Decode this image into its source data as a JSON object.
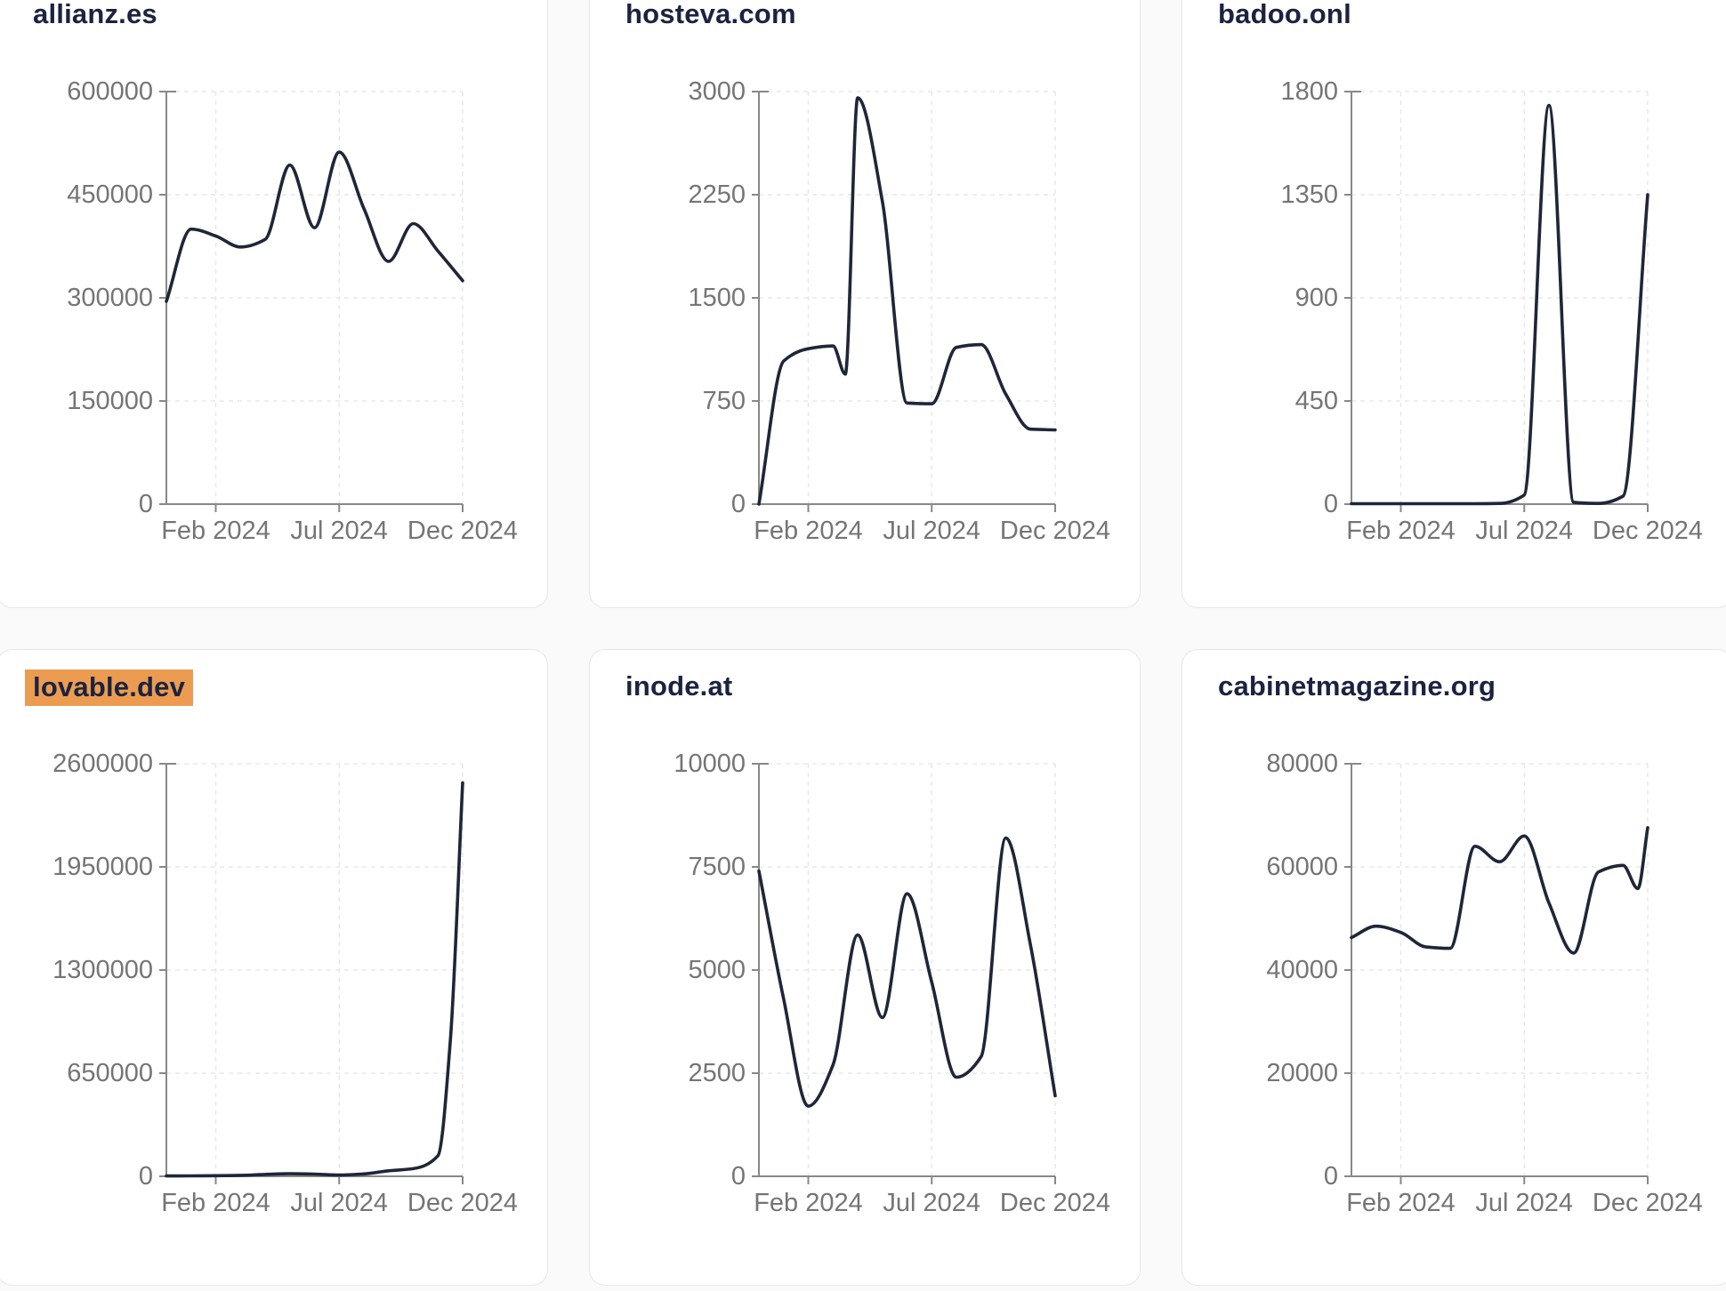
{
  "page": {
    "background": "#fafafb",
    "card_background": "#ffffff",
    "card_border": "#e5e7ee"
  },
  "style": {
    "line_color": "#1f2638",
    "title_color": "#1b2340",
    "tick_text_color": "#757575",
    "axis_color": "#888888",
    "grid_color": "#e7e8ec",
    "highlight_color": "#ec9c51"
  },
  "x_axis": {
    "domain_months": [
      0,
      12
    ],
    "tick_positions": [
      2,
      7,
      12
    ],
    "tick_labels": [
      "Feb 2024",
      "Jul 2024",
      "Dec 2024"
    ]
  },
  "chart_data": [
    {
      "type": "line",
      "title": "allianz.es",
      "highlighted": false,
      "ylim": [
        0,
        600000
      ],
      "y_ticks": [
        0,
        150000,
        300000,
        450000,
        600000
      ],
      "x_months": [
        0,
        1,
        2,
        3,
        4,
        5,
        6,
        7,
        8,
        9,
        10,
        11,
        12
      ],
      "values": [
        295000,
        400000,
        390000,
        374000,
        385000,
        493000,
        402000,
        512000,
        430000,
        353000,
        408000,
        368000,
        325000
      ]
    },
    {
      "type": "line",
      "title": "hosteva.com",
      "highlighted": false,
      "ylim": [
        0,
        3000
      ],
      "y_ticks": [
        0,
        750,
        1500,
        2250,
        3000
      ],
      "x_months": [
        0,
        1,
        2,
        3,
        3.5,
        4,
        5,
        6,
        7,
        8,
        9,
        10,
        11,
        12
      ],
      "values": [
        0,
        1040,
        1130,
        1150,
        945,
        2955,
        2200,
        735,
        730,
        1140,
        1160,
        800,
        545,
        540
      ]
    },
    {
      "type": "line",
      "title": "badoo.onl",
      "highlighted": false,
      "ylim": [
        0,
        1800
      ],
      "y_ticks": [
        0,
        450,
        900,
        1350,
        1800
      ],
      "x_months": [
        0,
        1,
        2,
        3,
        4,
        5,
        6,
        7,
        8,
        9,
        10,
        11,
        12
      ],
      "values": [
        2,
        2,
        2,
        2,
        2,
        2,
        3,
        40,
        1740,
        8,
        3,
        35,
        1350
      ]
    },
    {
      "type": "line",
      "title": "lovable.dev",
      "highlighted": true,
      "ylim": [
        0,
        2600000
      ],
      "y_ticks": [
        0,
        650000,
        1300000,
        1950000,
        2600000
      ],
      "x_months": [
        0,
        1,
        2,
        3,
        4,
        5,
        6,
        7,
        8,
        9,
        10,
        11,
        11.5,
        12
      ],
      "values": [
        2000,
        3000,
        4000,
        6000,
        12000,
        16000,
        14000,
        8000,
        15000,
        35000,
        48000,
        130000,
        850000,
        2480000
      ]
    },
    {
      "type": "line",
      "title": "inode.at",
      "highlighted": false,
      "ylim": [
        0,
        10000
      ],
      "y_ticks": [
        0,
        2500,
        5000,
        7500,
        10000
      ],
      "x_months": [
        0,
        1,
        2,
        3,
        4,
        5,
        6,
        7,
        8,
        9,
        10,
        11,
        12
      ],
      "values": [
        7400,
        4300,
        1700,
        2700,
        5850,
        3850,
        6850,
        4700,
        2400,
        2900,
        8200,
        5600,
        1950
      ]
    },
    {
      "type": "line",
      "title": "cabinetmagazine.org",
      "highlighted": false,
      "ylim": [
        0,
        80000
      ],
      "y_ticks": [
        0,
        20000,
        40000,
        60000,
        80000
      ],
      "x_months": [
        0,
        1,
        2,
        3,
        4,
        5,
        6,
        7,
        8,
        9,
        10,
        11,
        11.6,
        12
      ],
      "values": [
        46300,
        48500,
        47300,
        44500,
        44200,
        64000,
        61000,
        66000,
        53000,
        43300,
        59000,
        60300,
        55800,
        67600
      ]
    }
  ]
}
